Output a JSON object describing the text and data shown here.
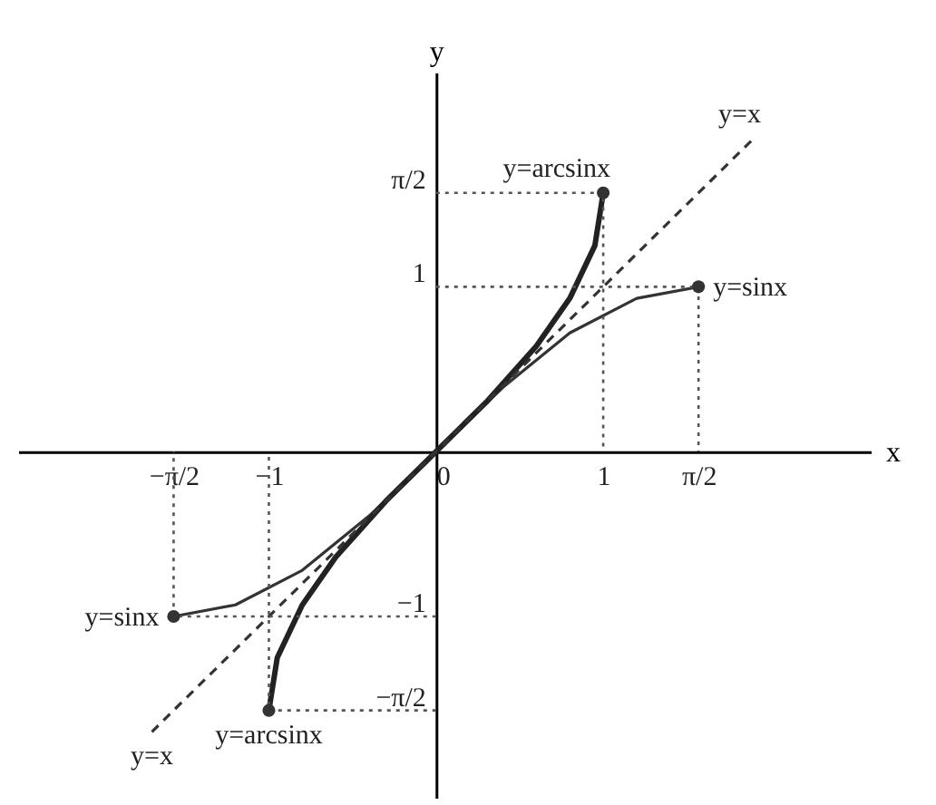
{
  "chart_data": {
    "type": "line",
    "xlabel": "x",
    "ylabel": "y",
    "xlim": [
      -2.5,
      2.6
    ],
    "ylim": [
      -2.1,
      2.3
    ],
    "xticks": [
      {
        "value": -1.57,
        "label": "−π/2"
      },
      {
        "value": -1,
        "label": "−1"
      },
      {
        "value": 0,
        "label": "0"
      },
      {
        "value": 1,
        "label": "1"
      },
      {
        "value": 1.57,
        "label": "π/2"
      }
    ],
    "yticks": [
      {
        "value": -1.57,
        "label": "−π/2"
      },
      {
        "value": -1,
        "label": "−1"
      },
      {
        "value": 1,
        "label": "1"
      },
      {
        "value": 1.57,
        "label": "π/2"
      }
    ],
    "grid": false,
    "series": [
      {
        "color": "#333333",
        "line_style": "solid",
        "x": [
          -1.57,
          -1.2,
          -0.8,
          -0.4,
          0,
          0.4,
          0.8,
          1.2,
          1.57
        ],
        "values": [
          -1,
          -0.93,
          -0.72,
          -0.39,
          0,
          0.39,
          0.72,
          0.93,
          1
        ]
      },
      {
        "color": "#222222",
        "line_style": "solid",
        "x": [
          -1,
          -0.95,
          -0.8,
          -0.6,
          -0.3,
          0,
          0.3,
          0.6,
          0.8,
          0.95,
          1
        ],
        "values": [
          -1.57,
          -1.25,
          -0.93,
          -0.64,
          -0.3,
          0,
          0.3,
          0.64,
          0.93,
          1.25,
          1.57
        ]
      },
      {
        "color": "#333333",
        "line_style": "dashed",
        "x": [
          -1.7,
          1.9
        ],
        "values": [
          -1.7,
          1.9
        ]
      },
      {
        "color": "#555555",
        "line_style": "dotted",
        "x": [
          0,
          1,
          1
        ],
        "values": [
          1.57,
          1.57,
          0
        ]
      },
      {
        "color": "#555555",
        "line_style": "dotted",
        "x": [
          0,
          1.57,
          1.57
        ],
        "values": [
          1,
          1,
          0
        ]
      },
      {
        "color": "#555555",
        "line_style": "dotted",
        "x": [
          0,
          -1,
          -1
        ],
        "values": [
          -1.57,
          -1.57,
          0
        ]
      },
      {
        "color": "#555555",
        "line_style": "dotted",
        "x": [
          0,
          -1.57,
          -1.57
        ],
        "values": [
          -1,
          -1,
          0
        ]
      },
      {
        "type": "scatter",
        "color": "#333333",
        "marker": "circle",
        "x": [
          -1.57,
          1.57,
          -1,
          1
        ],
        "values": [
          -1,
          1,
          -1.57,
          1.57
        ]
      }
    ],
    "annotations": [
      {
        "text": "y=arcsinx",
        "x": 1,
        "y": 1.57
      },
      {
        "text": "y=x",
        "x": 1.9,
        "y": 1.9
      },
      {
        "text": "y=sinx",
        "x": 1.57,
        "y": 1
      },
      {
        "text": "y=sinx",
        "x": -1.57,
        "y": -1
      },
      {
        "text": "y=x",
        "x": -1.7,
        "y": -1.7
      },
      {
        "text": "y=arcsinx",
        "x": -1,
        "y": -1.57
      }
    ]
  }
}
